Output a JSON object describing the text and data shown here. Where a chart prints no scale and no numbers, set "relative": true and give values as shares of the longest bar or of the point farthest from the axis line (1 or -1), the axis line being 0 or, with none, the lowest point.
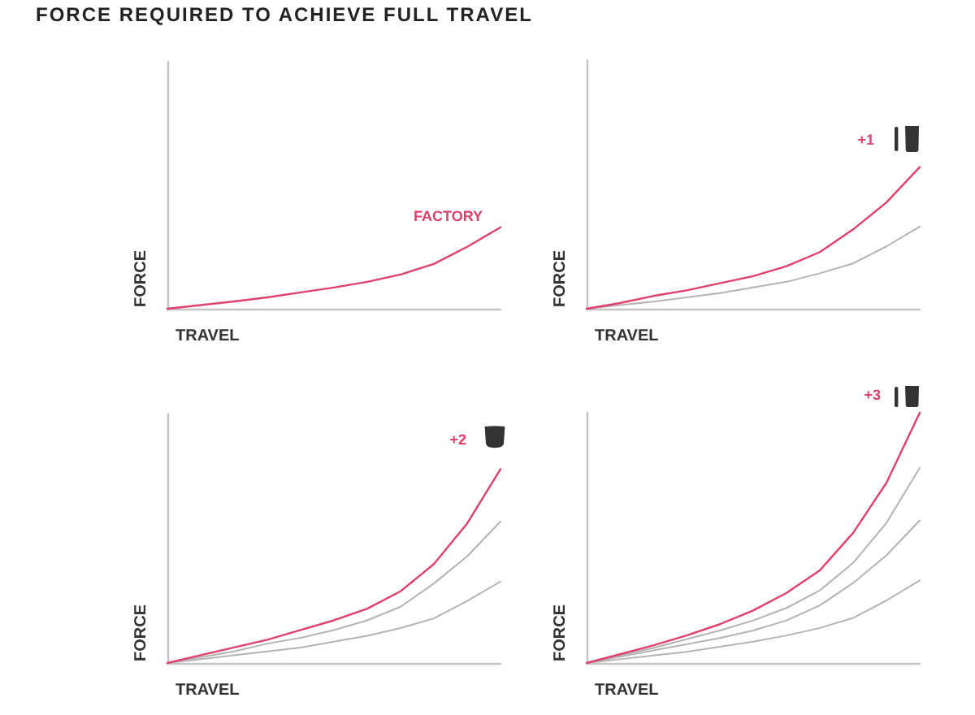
{
  "chart_data": [
    {
      "type": "line",
      "title": "FORCE REQUIRED TO ACHIEVE FULL TRAVEL",
      "xlabel": "TRAVEL",
      "ylabel": "FORCE",
      "relative": true,
      "categories": [
        null,
        null,
        null,
        null,
        null,
        null,
        null,
        null,
        null,
        null,
        null
      ],
      "series": [
        {
          "name": "FACTORY",
          "color": "#e0416b",
          "values": [
            0,
            0.045,
            0.09,
            0.14,
            0.2,
            0.26,
            0.33,
            0.42,
            0.55,
            0.76,
            1
          ]
        }
      ]
    },
    {
      "type": "line",
      "xlabel": "TRAVEL",
      "ylabel": "FORCE",
      "relative": true,
      "categories": [
        null,
        null,
        null,
        null,
        null,
        null,
        null,
        null,
        null,
        null,
        null
      ],
      "series": [
        {
          "color": "#b4b4b4",
          "values": [
            0,
            0.026,
            0.05,
            0.08,
            0.11,
            0.15,
            0.19,
            0.25,
            0.32,
            0.44,
            0.58
          ]
        },
        {
          "name": "+1",
          "color": "#e0416b",
          "values": [
            0,
            0.04,
            0.09,
            0.13,
            0.18,
            0.23,
            0.3,
            0.4,
            0.56,
            0.75,
            1
          ]
        }
      ]
    },
    {
      "type": "line",
      "xlabel": "TRAVEL",
      "ylabel": "FORCE",
      "relative": true,
      "categories": [
        null,
        null,
        null,
        null,
        null,
        null,
        null,
        null,
        null,
        null,
        null
      ],
      "series": [
        {
          "color": "#b4b4b4",
          "values": [
            0,
            0.02,
            0.04,
            0.06,
            0.08,
            0.11,
            0.14,
            0.18,
            0.23,
            0.32,
            0.42
          ]
        },
        {
          "color": "#b4b4b4",
          "values": [
            0,
            0.03,
            0.06,
            0.1,
            0.13,
            0.17,
            0.22,
            0.29,
            0.41,
            0.55,
            0.73
          ]
        },
        {
          "name": "+2",
          "color": "#e0416b",
          "values": [
            0,
            0.04,
            0.08,
            0.12,
            0.17,
            0.22,
            0.28,
            0.37,
            0.51,
            0.72,
            1
          ]
        }
      ]
    },
    {
      "type": "line",
      "xlabel": "TRAVEL",
      "ylabel": "FORCE",
      "relative": true,
      "categories": [
        null,
        null,
        null,
        null,
        null,
        null,
        null,
        null,
        null,
        null,
        null
      ],
      "series": [
        {
          "color": "#b4b4b4",
          "values": [
            0,
            0.015,
            0.03,
            0.045,
            0.065,
            0.085,
            0.11,
            0.14,
            0.18,
            0.25,
            0.33
          ]
        },
        {
          "color": "#b4b4b4",
          "values": [
            0,
            0.025,
            0.05,
            0.075,
            0.1,
            0.13,
            0.17,
            0.23,
            0.32,
            0.43,
            0.57
          ]
        },
        {
          "color": "#b4b4b4",
          "values": [
            0,
            0.03,
            0.06,
            0.095,
            0.13,
            0.17,
            0.22,
            0.29,
            0.4,
            0.56,
            0.78
          ]
        },
        {
          "name": "+3",
          "color": "#e0416b",
          "values": [
            0,
            0.035,
            0.07,
            0.11,
            0.155,
            0.21,
            0.28,
            0.37,
            0.52,
            0.72,
            1
          ]
        }
      ]
    }
  ]
}
